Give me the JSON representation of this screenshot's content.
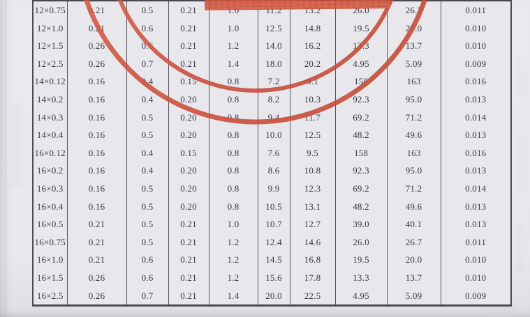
{
  "colors": {
    "page_background": "#eae9ee",
    "table_background": "#e8e7ec",
    "grid_line": "#565360",
    "text": "#3c3b49",
    "stamp_red": "#cd5340",
    "stamp_band_red": "#dc6147"
  },
  "table": {
    "rows": [
      {
        "size": "12×0.75",
        "values": [
          "0.21",
          "0.5",
          "0.21",
          "1.0",
          "11.2",
          "13.2",
          "26.0",
          "26.7",
          "0.011"
        ]
      },
      {
        "size": "12×1.0",
        "values": [
          "0.21",
          "0.6",
          "0.21",
          "1.0",
          "12.5",
          "14.8",
          "19.5",
          "20.0",
          "0.010"
        ]
      },
      {
        "size": "12×1.5",
        "values": [
          "0.26",
          "0.6",
          "0.21",
          "1.2",
          "14.0",
          "16.2",
          "13.3",
          "13.7",
          "0.010"
        ]
      },
      {
        "size": "12×2.5",
        "values": [
          "0.26",
          "0.7",
          "0.21",
          "1.4",
          "18.0",
          "20.2",
          "4.95",
          "5.09",
          "0.009"
        ]
      },
      {
        "size": "14×0.12",
        "values": [
          "0.16",
          "0.4",
          "0.15",
          "0.8",
          "7.2",
          "9.1",
          "158",
          "163",
          "0.016"
        ]
      },
      {
        "size": "14×0.2",
        "values": [
          "0.16",
          "0.4",
          "0.20",
          "0.8",
          "8.2",
          "10.3",
          "92.3",
          "95.0",
          "0.013"
        ]
      },
      {
        "size": "14×0.3",
        "values": [
          "0.16",
          "0.5",
          "0.20",
          "0.8",
          "9.4",
          "11.7",
          "69.2",
          "71.2",
          "0.014"
        ]
      },
      {
        "size": "14×0.4",
        "values": [
          "0.16",
          "0.5",
          "0.20",
          "0.8",
          "10.0",
          "12.5",
          "48.2",
          "49.6",
          "0.013"
        ]
      },
      {
        "size": "16×0.12",
        "values": [
          "0.16",
          "0.4",
          "0.15",
          "0.8",
          "7.6",
          "9.5",
          "158",
          "163",
          "0.016"
        ]
      },
      {
        "size": "16×0.2",
        "values": [
          "0.16",
          "0.4",
          "0.20",
          "0.8",
          "8.6",
          "10.8",
          "92.3",
          "95.0",
          "0.013"
        ]
      },
      {
        "size": "16×0.3",
        "values": [
          "0.16",
          "0.5",
          "0.20",
          "0.8",
          "9.9",
          "12.3",
          "69.2",
          "71.2",
          "0.014"
        ]
      },
      {
        "size": "16×0.4",
        "values": [
          "0.16",
          "0.5",
          "0.20",
          "0.8",
          "10.5",
          "13.1",
          "48.2",
          "49.6",
          "0.013"
        ]
      },
      {
        "size": "16×0.5",
        "values": [
          "0.21",
          "0.5",
          "0.21",
          "1.0",
          "10.7",
          "12.7",
          "39.0",
          "40.1",
          "0.013"
        ]
      },
      {
        "size": "16×0.75",
        "values": [
          "0.21",
          "0.5",
          "0.21",
          "1.2",
          "12.4",
          "14.6",
          "26.0",
          "26.7",
          "0.011"
        ]
      },
      {
        "size": "16×1.0",
        "values": [
          "0.21",
          "0.6",
          "0.21",
          "1.2",
          "14.5",
          "16.8",
          "19.5",
          "20.0",
          "0.010"
        ]
      },
      {
        "size": "16×1.5",
        "values": [
          "0.26",
          "0.6",
          "0.21",
          "1.2",
          "15.6",
          "17.8",
          "13.3",
          "13.7",
          "0.010"
        ]
      },
      {
        "size": "16×2.5",
        "values": [
          "0.26",
          "0.7",
          "0.21",
          "1.4",
          "20.0",
          "22.5",
          "4.95",
          "5.09",
          "0.009"
        ]
      }
    ]
  }
}
